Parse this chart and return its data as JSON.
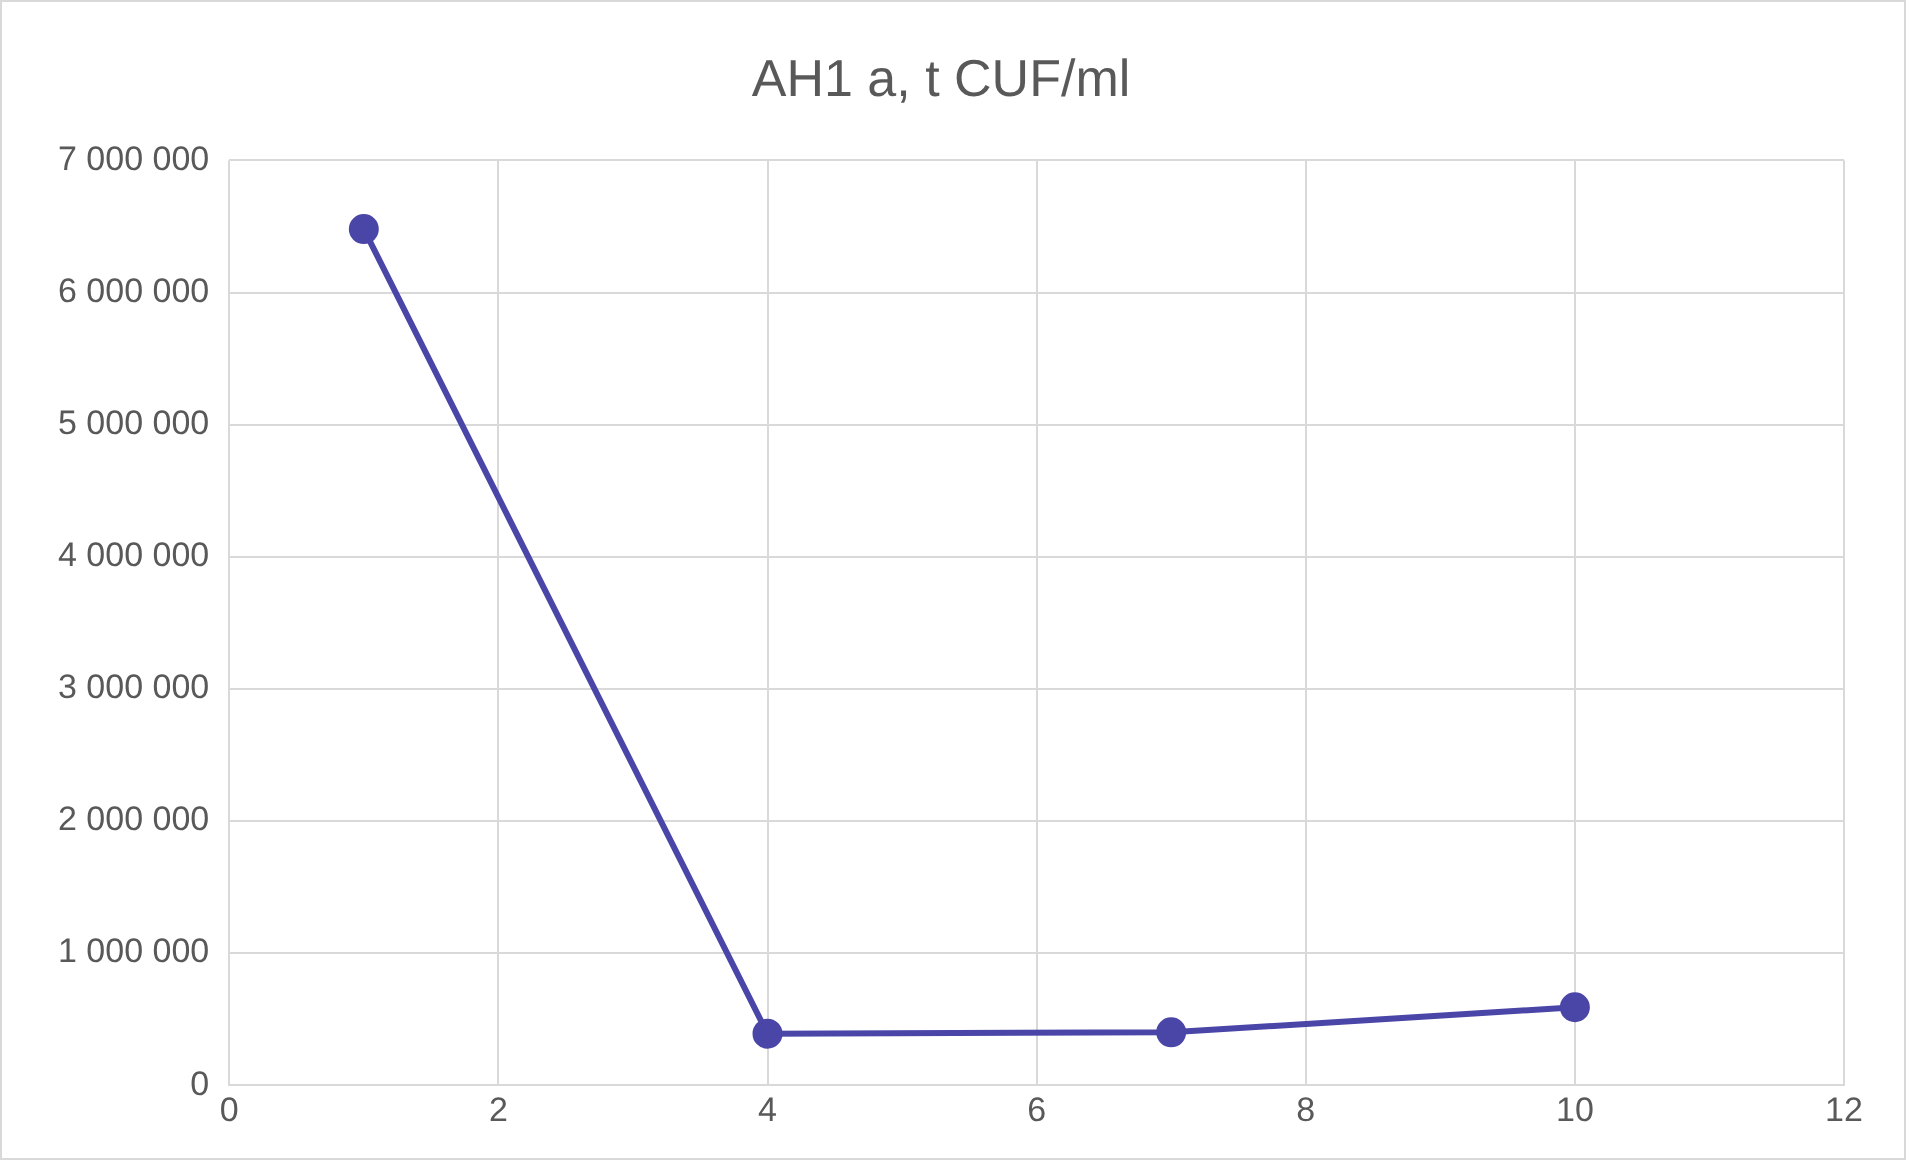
{
  "chart_data": {
    "type": "line",
    "title": "AH1 a, t CUF/ml",
    "x": [
      1,
      4,
      7,
      10
    ],
    "series": [
      {
        "color": "#4a46a8",
        "values": [
          6480000,
          390000,
          400000,
          590000
        ]
      }
    ],
    "xlim": [
      0,
      12
    ],
    "xticks": [
      0,
      2,
      4,
      6,
      8,
      10,
      12
    ],
    "ylim": [
      0,
      7000000
    ],
    "yticks": [
      {
        "value": 0,
        "label": "0"
      },
      {
        "value": 1000000,
        "label": "1 000 000"
      },
      {
        "value": 2000000,
        "label": "2 000 000"
      },
      {
        "value": 3000000,
        "label": "3 000 000"
      },
      {
        "value": 4000000,
        "label": "4 000 000"
      },
      {
        "value": 5000000,
        "label": "5 000 000"
      },
      {
        "value": 6000000,
        "label": "6 000 000"
      },
      {
        "value": 7000000,
        "label": "7 000 000"
      }
    ],
    "grid": true,
    "legend": false,
    "marker": "circle",
    "line_style": "solid"
  }
}
